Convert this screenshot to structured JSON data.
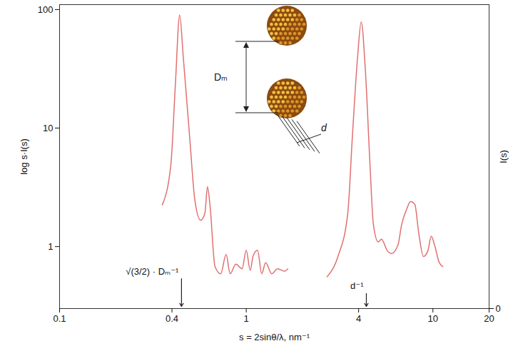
{
  "chart_data": {
    "type": "line",
    "log": true,
    "x_label": "s = 2sinθ/λ, nm⁻¹",
    "y_label": "log s·I(s)",
    "y2_label": "I(s)",
    "xlim": [
      0.1,
      20
    ],
    "xticks": [
      0.1,
      0.4,
      1,
      4,
      10,
      20
    ],
    "ylim": [
      0.3,
      110
    ],
    "yticks": [
      1,
      10,
      100
    ],
    "y2lim": [
      0,
      1.05
    ],
    "y2ticks": [
      0
    ],
    "series": [
      {
        "color": "#e07070",
        "x": [
          0.355,
          0.395,
          0.417,
          0.44,
          0.46,
          0.5,
          0.53,
          0.57,
          0.6,
          0.62,
          0.64,
          0.68,
          0.73,
          0.78,
          0.82,
          0.88,
          0.95,
          1.0,
          1.05,
          1.09,
          1.15,
          1.21,
          1.27,
          1.37,
          1.47,
          1.6,
          1.67
        ],
        "values": [
          2.25,
          5.0,
          22.9,
          90,
          39.6,
          7.6,
          2.5,
          1.67,
          1.9,
          3.2,
          2.2,
          0.68,
          0.59,
          0.86,
          0.59,
          0.71,
          0.65,
          0.93,
          0.63,
          0.84,
          0.93,
          0.59,
          0.73,
          0.59,
          0.65,
          0.62,
          0.65
        ]
      },
      {
        "color": "#e07070",
        "axis": "y2",
        "x": [
          2.71,
          3.1,
          3.5,
          3.7,
          3.95,
          4.13,
          4.35,
          4.6,
          4.8,
          5.1,
          5.3,
          5.7,
          6.0,
          6.5,
          6.8,
          7.2,
          7.6,
          8.0,
          8.4,
          8.9,
          9.4,
          9.8,
          10.2,
          10.8,
          11.3
        ],
        "values": [
          0.11,
          0.18,
          0.33,
          0.59,
          0.87,
          0.99,
          0.82,
          0.5,
          0.29,
          0.23,
          0.24,
          0.2,
          0.19,
          0.22,
          0.29,
          0.34,
          0.37,
          0.36,
          0.26,
          0.18,
          0.2,
          0.25,
          0.22,
          0.16,
          0.145
        ]
      }
    ],
    "annotations": [
      {
        "text": "√(3/2) · Dₘ⁻¹",
        "x": 0.45,
        "y": 0.6
      },
      {
        "text": "d⁻¹",
        "x": 4.4,
        "y": 0.45
      }
    ],
    "inset_labels": [
      "Dₘ",
      "d"
    ]
  }
}
